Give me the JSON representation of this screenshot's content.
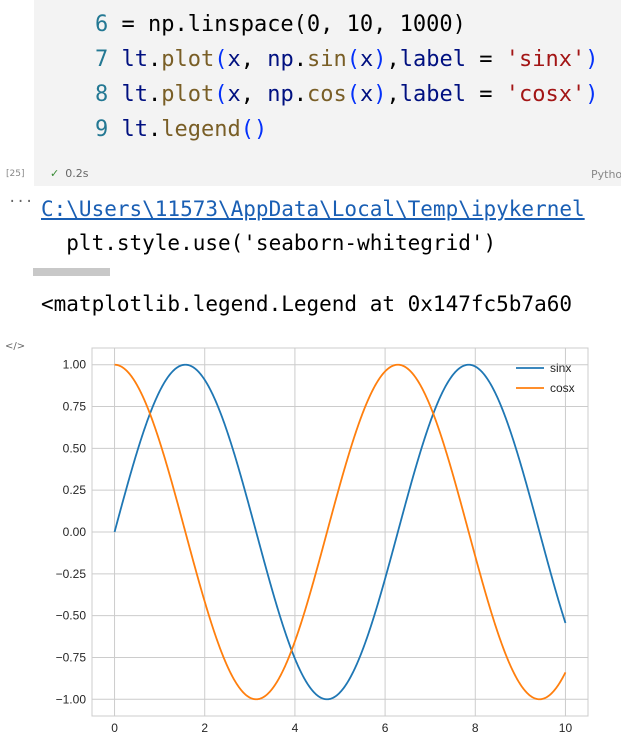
{
  "code": {
    "line6": {
      "num": "6",
      "text": " = np.linspace(0, 10, 1000)"
    },
    "line7": {
      "num": "7"
    },
    "line8": {
      "num": "8"
    },
    "line9": {
      "num": "9"
    }
  },
  "cell": {
    "exec_count": "[25]",
    "status_time": "0.2s",
    "language": "Python"
  },
  "output": {
    "ellipsis": "...",
    "path_link": "C:\\Users\\11573\\AppData\\Local\\Temp\\ipykernel",
    "warning_line": "  plt.style.use('seaborn-whitegrid')",
    "result_repr": "<matplotlib.legend.Legend at 0x147fc5b7a60",
    "code_icon": "</>"
  },
  "chart_data": {
    "type": "line",
    "title": "",
    "xlabel": "",
    "ylabel": "",
    "xlim": [
      -0.5,
      10.5
    ],
    "ylim": [
      -1.1,
      1.1
    ],
    "x_ticks": [
      0,
      2,
      4,
      6,
      8,
      10
    ],
    "x_tick_labels": [
      "0",
      "2",
      "4",
      "6",
      "8",
      "10"
    ],
    "y_ticks": [
      1.0,
      0.75,
      0.5,
      0.25,
      0.0,
      -0.25,
      -0.5,
      -0.75,
      -1.0
    ],
    "y_tick_labels": [
      "1.00",
      "0.75",
      "0.50",
      "0.25",
      "0.00",
      "−0.25",
      "−0.50",
      "−0.75",
      "−1.00"
    ],
    "grid": true,
    "legend_position": "top-right",
    "series": [
      {
        "name": "sinx",
        "function": "sin",
        "color": "#1f77b4",
        "x_range": [
          0,
          10
        ],
        "points": 1000
      },
      {
        "name": "cosx",
        "function": "cos",
        "color": "#ff7f0e",
        "x_range": [
          0,
          10
        ],
        "points": 1000
      }
    ]
  }
}
